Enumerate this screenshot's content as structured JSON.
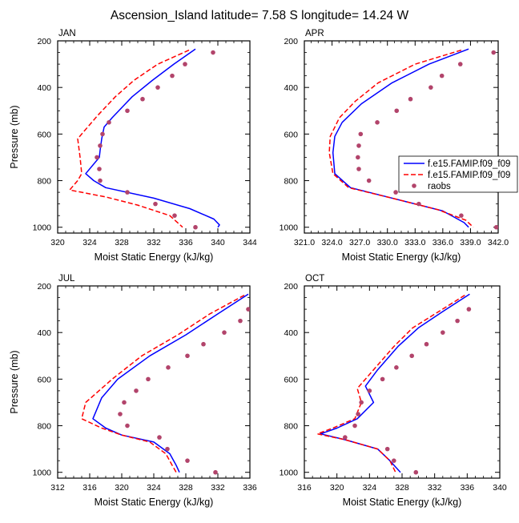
{
  "figure": {
    "title": "Ascension_Island  latitude= 7.58 S longitude= 14.24 W"
  },
  "colors": {
    "model1": "#0000ff",
    "model2": "#ff0000",
    "obs": "#b2446b"
  },
  "legend": {
    "entries": [
      "f.e15.FAMIP.f09_f09",
      "f.e15.FAMIP.f09_f09",
      "raobs"
    ]
  },
  "chart_data": [
    {
      "type": "line",
      "panel": "JAN",
      "title": "JAN",
      "xlabel": "Moist Static Energy (kJ/kg)",
      "ylabel": "Pressure (mb)",
      "xlim": [
        320,
        344
      ],
      "ylim": [
        200,
        1025
      ],
      "y_reversed": true,
      "xticks": [
        "320",
        "324",
        "328",
        "332",
        "336",
        "340",
        "344"
      ],
      "yticks": [
        "200",
        "400",
        "600",
        "800",
        "1000"
      ],
      "series": [
        {
          "name": "f.e15.FAMIP.f09_f09",
          "style": "solid",
          "points": [
            [
              337.2,
              235
            ],
            [
              334.5,
              300
            ],
            [
              331.8,
              370
            ],
            [
              329.3,
              440
            ],
            [
              326.8,
              530
            ],
            [
              325.8,
              570
            ],
            [
              325.5,
              620
            ],
            [
              325.3,
              670
            ],
            [
              325.2,
              700
            ],
            [
              323.5,
              770
            ],
            [
              324.5,
              800
            ],
            [
              326,
              830
            ],
            [
              332,
              875
            ],
            [
              336.5,
              920
            ],
            [
              339.5,
              965
            ],
            [
              340.2,
              990
            ],
            [
              340,
              1000
            ]
          ]
        },
        {
          "name": "f.e15.FAMIP.f09_f09",
          "style": "dashed",
          "points": [
            [
              336.4,
              240
            ],
            [
              332.5,
              300
            ],
            [
              329.5,
              370
            ],
            [
              327.2,
              440
            ],
            [
              325,
              520
            ],
            [
              324,
              560
            ],
            [
              322.5,
              620
            ],
            [
              322.8,
              700
            ],
            [
              323,
              770
            ],
            [
              322.5,
              800
            ],
            [
              321.5,
              840
            ],
            [
              326,
              870
            ],
            [
              330,
              905
            ],
            [
              334,
              950
            ],
            [
              335.6,
              1000
            ]
          ]
        },
        {
          "name": "raobs",
          "style": "dots",
          "points": [
            [
              339.4,
              250
            ],
            [
              335.9,
              300
            ],
            [
              334.3,
              350
            ],
            [
              332.5,
              400
            ],
            [
              330.6,
              450
            ],
            [
              328.7,
              500
            ],
            [
              326.4,
              550
            ],
            [
              325.6,
              600
            ],
            [
              325.3,
              650
            ],
            [
              324.9,
              700
            ],
            [
              325.2,
              750
            ],
            [
              325.3,
              800
            ],
            [
              328.7,
              850
            ],
            [
              332.2,
              900
            ],
            [
              334.6,
              950
            ],
            [
              337.2,
              1000
            ]
          ]
        }
      ]
    },
    {
      "type": "line",
      "panel": "APR",
      "title": "APR",
      "xlabel": "Moist Static Energy (kJ/kg)",
      "ylabel": "",
      "xlim": [
        321,
        342
      ],
      "ylim": [
        200,
        1025
      ],
      "y_reversed": true,
      "xticks": [
        "321.0",
        "324.0",
        "327.0",
        "330.0",
        "333.0",
        "336.0",
        "339.0",
        "342.0"
      ],
      "yticks": [
        "200",
        "400",
        "600",
        "800",
        "1000"
      ],
      "series": [
        {
          "name": "f.e15.FAMIP.f09_f09",
          "style": "solid",
          "points": [
            [
              338.8,
              235
            ],
            [
              334.5,
              300
            ],
            [
              330.5,
              380
            ],
            [
              327.2,
              470
            ],
            [
              325.1,
              550
            ],
            [
              324.3,
              610
            ],
            [
              324.1,
              680
            ],
            [
              324.3,
              770
            ],
            [
              326,
              830
            ],
            [
              331,
              880
            ],
            [
              336,
              930
            ],
            [
              338.3,
              980
            ],
            [
              338.8,
              1000
            ]
          ]
        },
        {
          "name": "f.e15.FAMIP.f09_f09",
          "style": "dashed",
          "points": [
            [
              338,
              240
            ],
            [
              333,
              300
            ],
            [
              329,
              380
            ],
            [
              326.5,
              460
            ],
            [
              324.8,
              530
            ],
            [
              323.8,
              610
            ],
            [
              323.7,
              680
            ],
            [
              324.1,
              770
            ],
            [
              325.8,
              830
            ],
            [
              330.5,
              875
            ],
            [
              335.5,
              925
            ],
            [
              338.5,
              970
            ],
            [
              339.3,
              1000
            ]
          ]
        },
        {
          "name": "raobs",
          "style": "dots",
          "points": [
            [
              341.5,
              250
            ],
            [
              337.9,
              300
            ],
            [
              335.9,
              350
            ],
            [
              334.7,
              400
            ],
            [
              332.5,
              450
            ],
            [
              331,
              500
            ],
            [
              328.9,
              550
            ],
            [
              327.1,
              600
            ],
            [
              326.9,
              650
            ],
            [
              326.8,
              700
            ],
            [
              326.9,
              750
            ],
            [
              328,
              800
            ],
            [
              330.9,
              850
            ],
            [
              333.4,
              900
            ],
            [
              338,
              950
            ],
            [
              341.8,
              1000
            ]
          ]
        }
      ]
    },
    {
      "type": "line",
      "panel": "JUL",
      "title": "JUL",
      "xlabel": "Moist Static Energy (kJ/kg)",
      "ylabel": "Pressure (mb)",
      "xlim": [
        312,
        336
      ],
      "ylim": [
        200,
        1025
      ],
      "y_reversed": true,
      "xticks": [
        "312",
        "316",
        "320",
        "324",
        "328",
        "332",
        "336"
      ],
      "yticks": [
        "200",
        "400",
        "600",
        "800",
        "1000"
      ],
      "series": [
        {
          "name": "f.e15.FAMIP.f09_f09",
          "style": "solid",
          "points": [
            [
              335.8,
              235
            ],
            [
              332,
              320
            ],
            [
              328,
              410
            ],
            [
              323.5,
              500
            ],
            [
              319.5,
              600
            ],
            [
              317.5,
              680
            ],
            [
              316.4,
              770
            ],
            [
              318,
              810
            ],
            [
              320,
              840
            ],
            [
              324,
              870
            ],
            [
              326,
              920
            ],
            [
              326.8,
              970
            ],
            [
              327.2,
              1000
            ]
          ]
        },
        {
          "name": "f.e15.FAMIP.f09_f09",
          "style": "dashed",
          "points": [
            [
              335.3,
              240
            ],
            [
              331,
              320
            ],
            [
              327,
              410
            ],
            [
              322.5,
              500
            ],
            [
              318.8,
              600
            ],
            [
              315.5,
              700
            ],
            [
              315,
              770
            ],
            [
              317.5,
              810
            ],
            [
              320,
              840
            ],
            [
              323.5,
              870
            ],
            [
              325.5,
              920
            ],
            [
              326.3,
              970
            ],
            [
              326.8,
              1000
            ]
          ]
        },
        {
          "name": "raobs",
          "style": "dots",
          "points": [
            [
              335.8,
              300
            ],
            [
              334.8,
              350
            ],
            [
              332.8,
              400
            ],
            [
              330.2,
              450
            ],
            [
              328.2,
              500
            ],
            [
              325.8,
              550
            ],
            [
              323.3,
              600
            ],
            [
              321.8,
              650
            ],
            [
              320.3,
              700
            ],
            [
              319.8,
              750
            ],
            [
              320.7,
              800
            ],
            [
              324.7,
              850
            ],
            [
              325.7,
              900
            ],
            [
              328.2,
              950
            ],
            [
              331.7,
              1000
            ]
          ]
        }
      ]
    },
    {
      "type": "line",
      "panel": "OCT",
      "title": "OCT",
      "xlabel": "Moist Static Energy (kJ/kg)",
      "ylabel": "",
      "xlim": [
        316,
        340
      ],
      "ylim": [
        200,
        1025
      ],
      "y_reversed": true,
      "xticks": [
        "316",
        "320",
        "324",
        "328",
        "332",
        "336",
        "340"
      ],
      "yticks": [
        "200",
        "400",
        "600",
        "800",
        "1000"
      ],
      "series": [
        {
          "name": "f.e15.FAMIP.f09_f09",
          "style": "solid",
          "points": [
            [
              336.3,
              235
            ],
            [
              333,
              310
            ],
            [
              330,
              380
            ],
            [
              327.5,
              460
            ],
            [
              325,
              560
            ],
            [
              323.5,
              630
            ],
            [
              324.5,
              700
            ],
            [
              322.5,
              770
            ],
            [
              320,
              810
            ],
            [
              318,
              835
            ],
            [
              321,
              860
            ],
            [
              325,
              900
            ],
            [
              326.5,
              950
            ],
            [
              327.8,
              1000
            ]
          ]
        },
        {
          "name": "f.e15.FAMIP.f09_f09",
          "style": "dashed",
          "points": [
            [
              335.7,
              240
            ],
            [
              332.5,
              310
            ],
            [
              329.3,
              380
            ],
            [
              327,
              460
            ],
            [
              324.5,
              560
            ],
            [
              322.5,
              640
            ],
            [
              323,
              700
            ],
            [
              322.2,
              770
            ],
            [
              319.5,
              810
            ],
            [
              317.6,
              835
            ],
            [
              321,
              860
            ],
            [
              325,
              900
            ],
            [
              326.5,
              950
            ],
            [
              327.2,
              1000
            ]
          ]
        },
        {
          "name": "raobs",
          "style": "dots",
          "points": [
            [
              336.2,
              300
            ],
            [
              334.8,
              350
            ],
            [
              333,
              400
            ],
            [
              331,
              450
            ],
            [
              329.2,
              500
            ],
            [
              327.3,
              550
            ],
            [
              325.6,
              600
            ],
            [
              324,
              650
            ],
            [
              323,
              700
            ],
            [
              322.6,
              750
            ],
            [
              322.2,
              800
            ],
            [
              321,
              850
            ],
            [
              326.2,
              900
            ],
            [
              327,
              950
            ],
            [
              329.7,
              1000
            ]
          ]
        }
      ]
    }
  ]
}
